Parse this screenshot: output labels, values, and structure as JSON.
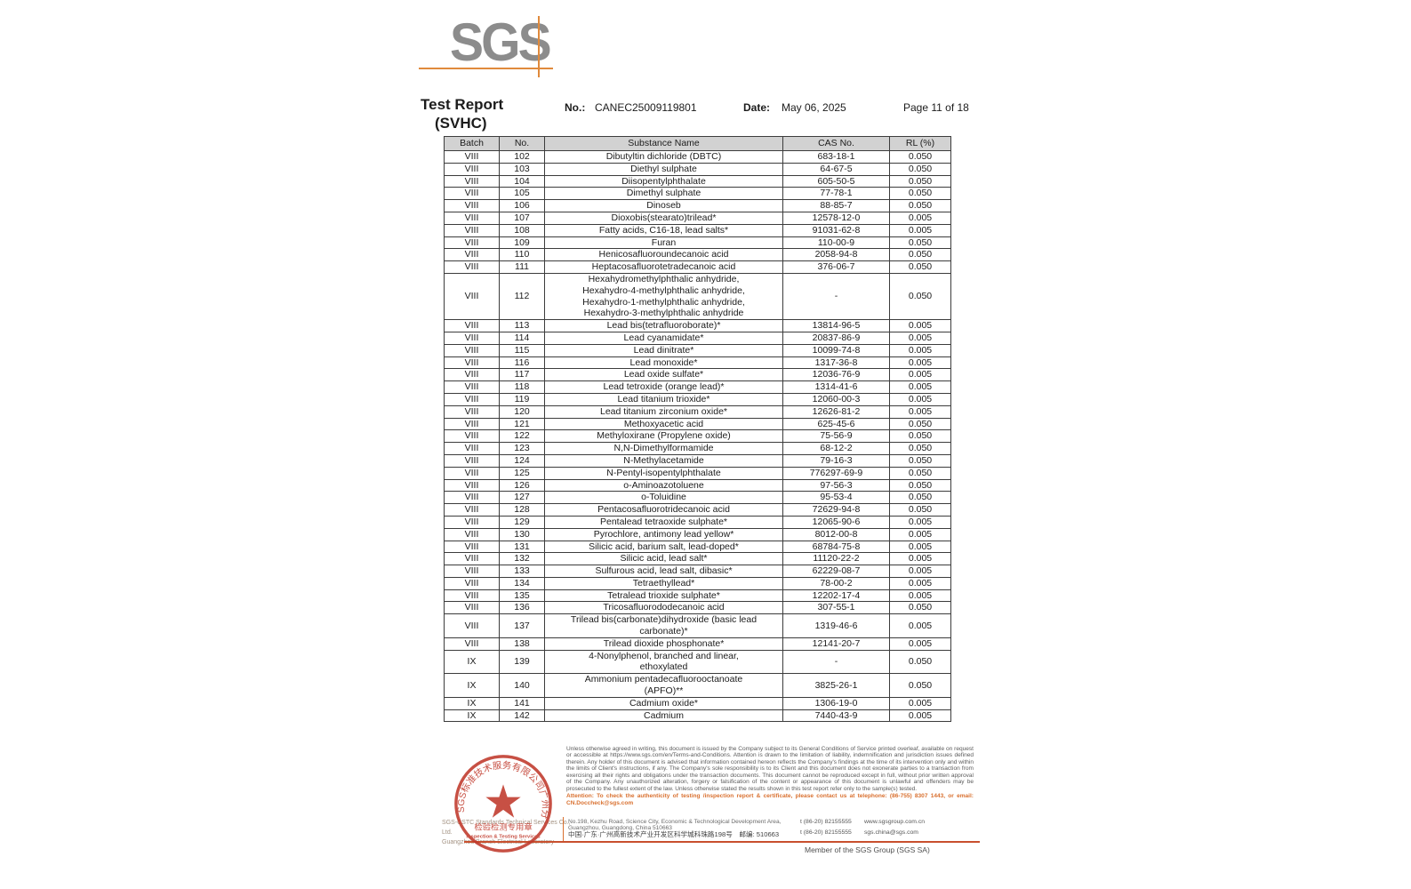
{
  "logo": {
    "text": "SGS"
  },
  "header": {
    "title_line1": "Test Report",
    "title_line2": "(SVHC)",
    "no_label": "No.:",
    "no_value": "CANEC25009119801",
    "date_label": "Date:",
    "date_value": "May 06, 2025",
    "page": "Page 11 of 18"
  },
  "table": {
    "columns": [
      "Batch",
      "No.",
      "Substance Name",
      "CAS No.",
      "RL (%)"
    ],
    "rows": [
      {
        "batch": "VIII",
        "no": "102",
        "name": "Dibutyltin dichloride (DBTC)",
        "cas": "683-18-1",
        "rl": "0.050"
      },
      {
        "batch": "VIII",
        "no": "103",
        "name": "Diethyl sulphate",
        "cas": "64-67-5",
        "rl": "0.050"
      },
      {
        "batch": "VIII",
        "no": "104",
        "name": "Diisopentylphthalate",
        "cas": "605-50-5",
        "rl": "0.050"
      },
      {
        "batch": "VIII",
        "no": "105",
        "name": "Dimethyl sulphate",
        "cas": "77-78-1",
        "rl": "0.050"
      },
      {
        "batch": "VIII",
        "no": "106",
        "name": "Dinoseb",
        "cas": "88-85-7",
        "rl": "0.050"
      },
      {
        "batch": "VIII",
        "no": "107",
        "name": "Dioxobis(stearato)trilead*",
        "cas": "12578-12-0",
        "rl": "0.005"
      },
      {
        "batch": "VIII",
        "no": "108",
        "name": "Fatty acids, C16-18, lead salts*",
        "cas": "91031-62-8",
        "rl": "0.005"
      },
      {
        "batch": "VIII",
        "no": "109",
        "name": "Furan",
        "cas": "110-00-9",
        "rl": "0.050"
      },
      {
        "batch": "VIII",
        "no": "110",
        "name": "Henicosafluoroundecanoic acid",
        "cas": "2058-94-8",
        "rl": "0.050"
      },
      {
        "batch": "VIII",
        "no": "111",
        "name": "Heptacosafluorotetradecanoic acid",
        "cas": "376-06-7",
        "rl": "0.050"
      },
      {
        "batch": "VIII",
        "no": "112",
        "name": "Hexahydromethylphthalic anhydride,\nHexahydro-4-methylphthalic anhydride,\nHexahydro-1-methylphthalic anhydride,\nHexahydro-3-methylphthalic anhydride",
        "cas": "-",
        "rl": "0.050"
      },
      {
        "batch": "VIII",
        "no": "113",
        "name": "Lead bis(tetrafluoroborate)*",
        "cas": "13814-96-5",
        "rl": "0.005"
      },
      {
        "batch": "VIII",
        "no": "114",
        "name": "Lead cyanamidate*",
        "cas": "20837-86-9",
        "rl": "0.005"
      },
      {
        "batch": "VIII",
        "no": "115",
        "name": "Lead dinitrate*",
        "cas": "10099-74-8",
        "rl": "0.005"
      },
      {
        "batch": "VIII",
        "no": "116",
        "name": "Lead monoxide*",
        "cas": "1317-36-8",
        "rl": "0.005"
      },
      {
        "batch": "VIII",
        "no": "117",
        "name": "Lead oxide sulfate*",
        "cas": "12036-76-9",
        "rl": "0.005"
      },
      {
        "batch": "VIII",
        "no": "118",
        "name": "Lead tetroxide (orange lead)*",
        "cas": "1314-41-6",
        "rl": "0.005"
      },
      {
        "batch": "VIII",
        "no": "119",
        "name": "Lead titanium trioxide*",
        "cas": "12060-00-3",
        "rl": "0.005"
      },
      {
        "batch": "VIII",
        "no": "120",
        "name": "Lead titanium zirconium oxide*",
        "cas": "12626-81-2",
        "rl": "0.005"
      },
      {
        "batch": "VIII",
        "no": "121",
        "name": "Methoxyacetic acid",
        "cas": "625-45-6",
        "rl": "0.050"
      },
      {
        "batch": "VIII",
        "no": "122",
        "name": "Methyloxirane (Propylene oxide)",
        "cas": "75-56-9",
        "rl": "0.050"
      },
      {
        "batch": "VIII",
        "no": "123",
        "name": "N,N-Dimethylformamide",
        "cas": "68-12-2",
        "rl": "0.050"
      },
      {
        "batch": "VIII",
        "no": "124",
        "name": "N-Methylacetamide",
        "cas": "79-16-3",
        "rl": "0.050"
      },
      {
        "batch": "VIII",
        "no": "125",
        "name": "N-Pentyl-isopentylphthalate",
        "cas": "776297-69-9",
        "rl": "0.050"
      },
      {
        "batch": "VIII",
        "no": "126",
        "name": "o-Aminoazotoluene",
        "cas": "97-56-3",
        "rl": "0.050"
      },
      {
        "batch": "VIII",
        "no": "127",
        "name": "o-Toluidine",
        "cas": "95-53-4",
        "rl": "0.050"
      },
      {
        "batch": "VIII",
        "no": "128",
        "name": "Pentacosafluorotridecanoic acid",
        "cas": "72629-94-8",
        "rl": "0.050"
      },
      {
        "batch": "VIII",
        "no": "129",
        "name": "Pentalead tetraoxide sulphate*",
        "cas": "12065-90-6",
        "rl": "0.005"
      },
      {
        "batch": "VIII",
        "no": "130",
        "name": "Pyrochlore, antimony lead yellow*",
        "cas": "8012-00-8",
        "rl": "0.005"
      },
      {
        "batch": "VIII",
        "no": "131",
        "name": "Silicic acid, barium salt, lead-doped*",
        "cas": "68784-75-8",
        "rl": "0.005"
      },
      {
        "batch": "VIII",
        "no": "132",
        "name": "Silicic acid, lead salt*",
        "cas": "11120-22-2",
        "rl": "0.005"
      },
      {
        "batch": "VIII",
        "no": "133",
        "name": "Sulfurous acid, lead salt, dibasic*",
        "cas": "62229-08-7",
        "rl": "0.005"
      },
      {
        "batch": "VIII",
        "no": "134",
        "name": "Tetraethyllead*",
        "cas": "78-00-2",
        "rl": "0.005"
      },
      {
        "batch": "VIII",
        "no": "135",
        "name": "Tetralead trioxide sulphate*",
        "cas": "12202-17-4",
        "rl": "0.005"
      },
      {
        "batch": "VIII",
        "no": "136",
        "name": "Tricosafluorododecanoic acid",
        "cas": "307-55-1",
        "rl": "0.050"
      },
      {
        "batch": "VIII",
        "no": "137",
        "name": "Trilead bis(carbonate)dihydroxide (basic lead\ncarbonate)*",
        "cas": "1319-46-6",
        "rl": "0.005"
      },
      {
        "batch": "VIII",
        "no": "138",
        "name": "Trilead dioxide phosphonate*",
        "cas": "12141-20-7",
        "rl": "0.005"
      },
      {
        "batch": "IX",
        "no": "139",
        "name": "4-Nonylphenol, branched and linear,\nethoxylated",
        "cas": "-",
        "rl": "0.050"
      },
      {
        "batch": "IX",
        "no": "140",
        "name": "Ammonium pentadecafluorooctanoate\n(APFO)**",
        "cas": "3825-26-1",
        "rl": "0.050"
      },
      {
        "batch": "IX",
        "no": "141",
        "name": "Cadmium oxide*",
        "cas": "1306-19-0",
        "rl": "0.005"
      },
      {
        "batch": "IX",
        "no": "142",
        "name": "Cadmium",
        "cas": "7440-43-9",
        "rl": "0.005"
      }
    ]
  },
  "stamp": {
    "arc_text": "SGS标准技术服务有限公司广州分公司",
    "line1": "检验检测专用章",
    "line2": "Inspection & Testing Services"
  },
  "footer": {
    "company_line1": "SGS-CSTC Standards Technical Services Co., Ltd.",
    "company_line2": "Guangzhou Branch Electrical Laboratory",
    "legal": "Unless otherwise agreed in writing, this document is issued by the Company subject to its General Conditions of Service printed overleaf, available on request or accessible at https://www.sgs.com/en/Terms-and-Conditions. Attention is drawn to the limitation of liability, indemnification and jurisdiction issues defined therein. Any holder of this document is advised that information contained hereon reflects the Company's findings at the time of its intervention only and within the limits of Client's instructions, if any. The Company's sole responsibility is to its Client and this document does not exonerate parties to a transaction from exercising all their rights and obligations under the transaction documents. This document cannot be reproduced except in full, without prior written approval of the Company. Any unauthorized alteration, forgery or falsification of the content or appearance of this document is unlawful and offenders may be prosecuted to the fullest extent of the law. Unless otherwise stated the results shown in this test report refer only to the sample(s) tested.",
    "attention": "Attention: To check the authenticity of testing /inspection report & certificate, please contact us at telephone: (86-755) 8307 1443, or email: CN.Doccheck@sgs.com",
    "address_en": "No.198, Kezhu Road, Science City, Economic & Technological Development Area, Guangzhou, Guangdong, China 510663",
    "address_cn": "中国·广东·广州高新技术产业开发区科学城科珠路198号　邮编: 510663",
    "phone1": "t (86-20) 82155555",
    "phone2": "t (86-20) 82155555",
    "website": "www.sgsgroup.com.cn",
    "email": "sgs.china@sgs.com",
    "member": "Member of the SGS Group (SGS SA)"
  },
  "colors": {
    "logo_gray": "#8c8c8c",
    "accent_orange": "#e08a3c",
    "table_header_bg": "#d2d2d2",
    "attention_orange": "#d9702f",
    "stamp_red": "#c0392b",
    "footer_line": "#c8502e"
  }
}
